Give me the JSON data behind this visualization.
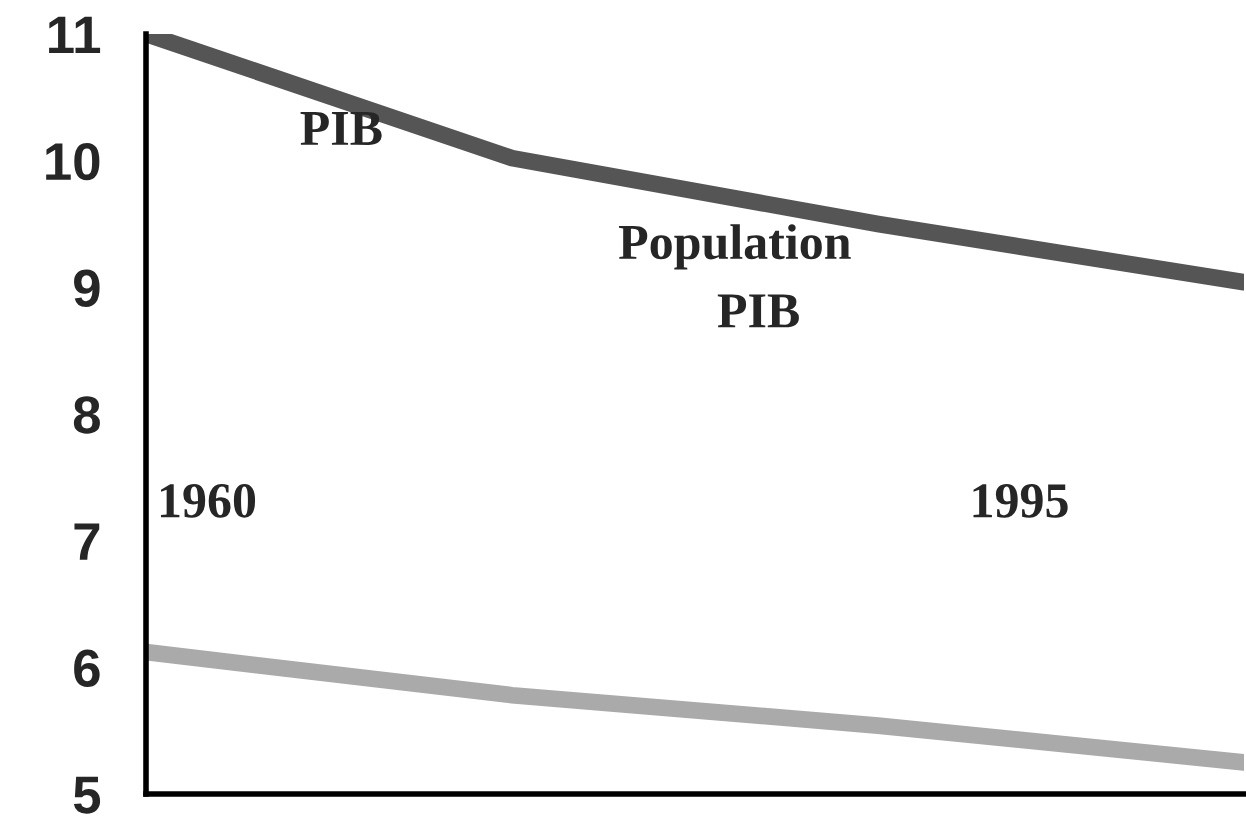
{
  "chart_data": {
    "type": "line",
    "categories": [
      null,
      null,
      null,
      null
    ],
    "series": [
      {
        "color": "#555555",
        "values": [
          11.0,
          10.02,
          9.5,
          9.04
        ]
      },
      {
        "color": "#aaaaaa",
        "values": [
          6.12,
          5.78,
          5.54,
          5.25
        ]
      }
    ],
    "ylim": [
      5,
      11
    ],
    "yticks": [
      5,
      6,
      7,
      8,
      9,
      10,
      11
    ],
    "annotations": [
      "PIB",
      "Population",
      "PIB",
      "1960",
      "1995"
    ],
    "grid": false,
    "legend": false,
    "marker": "none",
    "line_style": "solid"
  }
}
